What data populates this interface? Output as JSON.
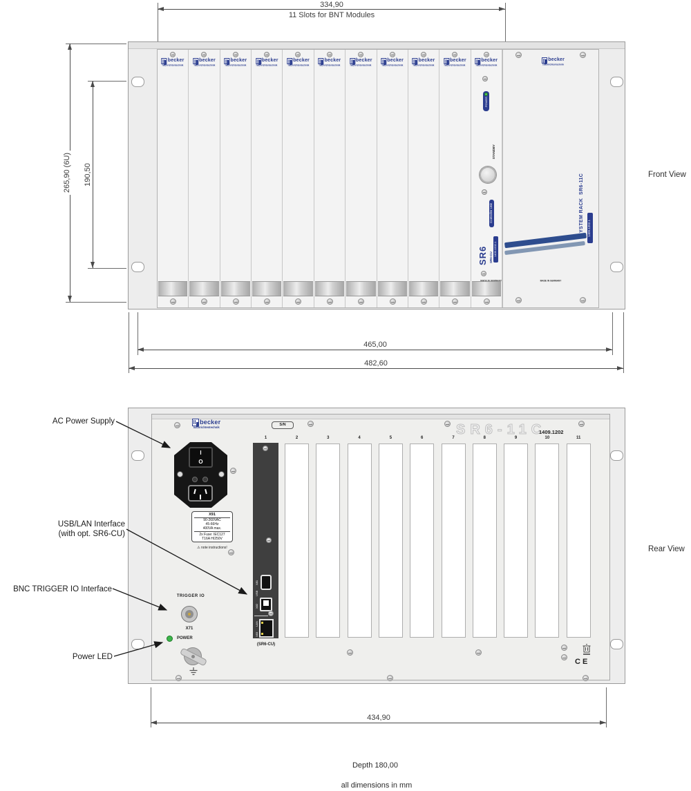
{
  "colors": {
    "brand_blue": "#2b3d8f",
    "stripe_dark": "#2e4d8e",
    "stripe_light": "#8297b3",
    "led_green": "#3cb54a"
  },
  "brand": {
    "name": "becker",
    "subtitle": "nachrichtentechnik"
  },
  "top_dimension": {
    "value": "334,90",
    "caption": "11 Slots for BNT Modules"
  },
  "front_view": {
    "label": "Front View",
    "dims": {
      "height_outer": "265,90 (6U)",
      "height_inner": "190,50",
      "width_inner": "465,00",
      "width_outer": "482,60"
    },
    "slot_count": 11,
    "controller": {
      "power": "POWER",
      "standby": "STANDBY",
      "model": "SR6",
      "submodel": "SR6-CU",
      "unit": "Controller Unit",
      "part": "1409.1202.1",
      "origin": "MADE IN GERMANY"
    },
    "side_panel": {
      "title": "SYSTEM RACK  SR6-11C",
      "part": "1409.1202.1",
      "origin": "MADE IN GERMANY"
    }
  },
  "rear_view": {
    "label": "Rear View",
    "serial_badge": "S/N",
    "model": "SR6-11C",
    "part": "1409.1202",
    "slots": [
      "1",
      "2",
      "3",
      "4",
      "5",
      "6",
      "7",
      "8",
      "9",
      "10",
      "11"
    ],
    "cu_caption": "(SR6-CU)",
    "cu_ports": {
      "usb_a": "X81",
      "usb": "USB",
      "usb_b": "X82",
      "lan": "LAN",
      "lan_id": "X83"
    },
    "rocker": {
      "on": "I",
      "off": "O"
    },
    "power_inlet_label": {
      "title": "X91",
      "ratings": [
        "90-260VAC",
        "45-66Hz",
        "400VA max."
      ],
      "fuses": [
        "2x Fuse: IEC127",
        "T16A H/250V"
      ],
      "note": "⚠ note instructions!"
    },
    "trigger": {
      "title": "TRIGGER IO",
      "port": "X71"
    },
    "power_led": "POWER",
    "ce_mark": "CE",
    "dim_width": "434,90"
  },
  "callouts": {
    "ac": "AC Power Supply",
    "usb_line1": "USB/LAN Interface",
    "usb_line2": "(with opt. SR6-CU)",
    "bnc": "BNC TRIGGER IO Interface",
    "led": "Power LED"
  },
  "footer": {
    "depth": "Depth 180,00",
    "units": "all dimensions in mm"
  }
}
